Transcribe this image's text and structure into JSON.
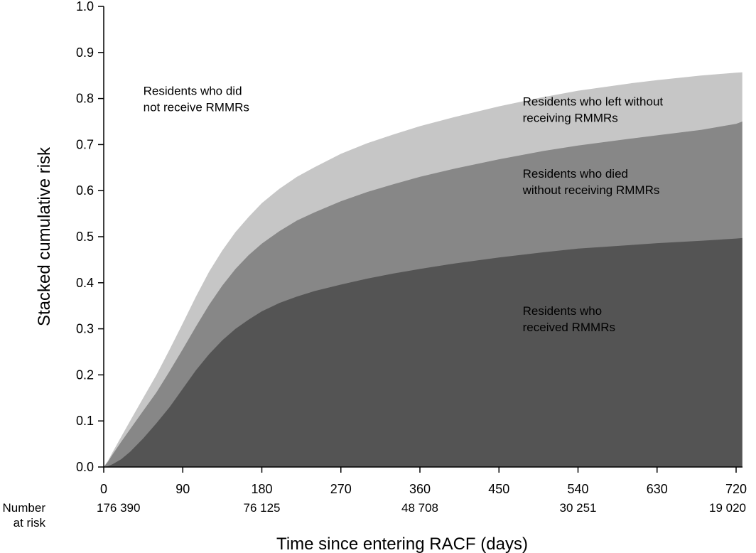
{
  "chart_data": {
    "type": "area",
    "title": "",
    "xlabel": "Time since entering RACF (days)",
    "ylabel": "Stacked cumulative risk",
    "xlim": [
      0,
      727
    ],
    "ylim": [
      0,
      1.0
    ],
    "xticks": [
      0,
      90,
      180,
      270,
      360,
      450,
      540,
      630,
      720
    ],
    "yticks": [
      0.0,
      0.1,
      0.2,
      0.3,
      0.4,
      0.5,
      0.6,
      0.7,
      0.8,
      0.9,
      1.0
    ],
    "grid": false,
    "x": [
      0,
      5,
      10,
      20,
      30,
      45,
      60,
      75,
      90,
      105,
      120,
      135,
      150,
      165,
      180,
      200,
      220,
      240,
      270,
      300,
      330,
      360,
      400,
      450,
      500,
      540,
      600,
      630,
      680,
      720,
      727
    ],
    "series": [
      {
        "name": "Residents who received RMMRs",
        "color": "#545454",
        "values": [
          0,
          0.002,
          0.006,
          0.017,
          0.033,
          0.062,
          0.095,
          0.13,
          0.17,
          0.21,
          0.245,
          0.275,
          0.3,
          0.32,
          0.338,
          0.356,
          0.37,
          0.382,
          0.396,
          0.409,
          0.42,
          0.43,
          0.442,
          0.455,
          0.466,
          0.474,
          0.482,
          0.486,
          0.491,
          0.496,
          0.497
        ]
      },
      {
        "name": "Residents who died without receiving RMMRs",
        "color": "#878787",
        "values": [
          0,
          0.012,
          0.027,
          0.055,
          0.082,
          0.122,
          0.162,
          0.208,
          0.256,
          0.305,
          0.352,
          0.394,
          0.43,
          0.46,
          0.485,
          0.512,
          0.535,
          0.553,
          0.577,
          0.597,
          0.614,
          0.63,
          0.648,
          0.668,
          0.686,
          0.698,
          0.713,
          0.72,
          0.732,
          0.745,
          0.75
        ]
      },
      {
        "name": "Residents who left without receiving RMMRs",
        "color": "#c6c6c6",
        "values": [
          0,
          0.014,
          0.032,
          0.066,
          0.1,
          0.15,
          0.2,
          0.255,
          0.312,
          0.37,
          0.424,
          0.47,
          0.51,
          0.543,
          0.573,
          0.604,
          0.63,
          0.651,
          0.68,
          0.703,
          0.722,
          0.74,
          0.76,
          0.783,
          0.803,
          0.817,
          0.833,
          0.84,
          0.85,
          0.856,
          0.857
        ]
      }
    ],
    "remainder_label": "Residents who did not receive RMMRs",
    "annotations": [
      {
        "lines": [
          "Residents who did",
          "not receive RMMRs"
        ],
        "x": 45,
        "y": 0.808
      },
      {
        "lines": [
          "Residents who left without",
          "receiving RMMRs"
        ],
        "x": 477,
        "y": 0.785
      },
      {
        "lines": [
          "Residents who died",
          "without receiving RMMRs"
        ],
        "x": 477,
        "y": 0.628
      },
      {
        "lines": [
          "Residents who",
          "received RMMRs"
        ],
        "x": 477,
        "y": 0.33
      }
    ],
    "risk_table": {
      "label_lines": [
        "Number",
        "at risk"
      ],
      "points": [
        {
          "x": 0,
          "value": "176 390"
        },
        {
          "x": 180,
          "value": "76 125"
        },
        {
          "x": 360,
          "value": "48 708"
        },
        {
          "x": 540,
          "value": "30 251"
        },
        {
          "x": 720,
          "value": "19 020"
        }
      ]
    }
  }
}
